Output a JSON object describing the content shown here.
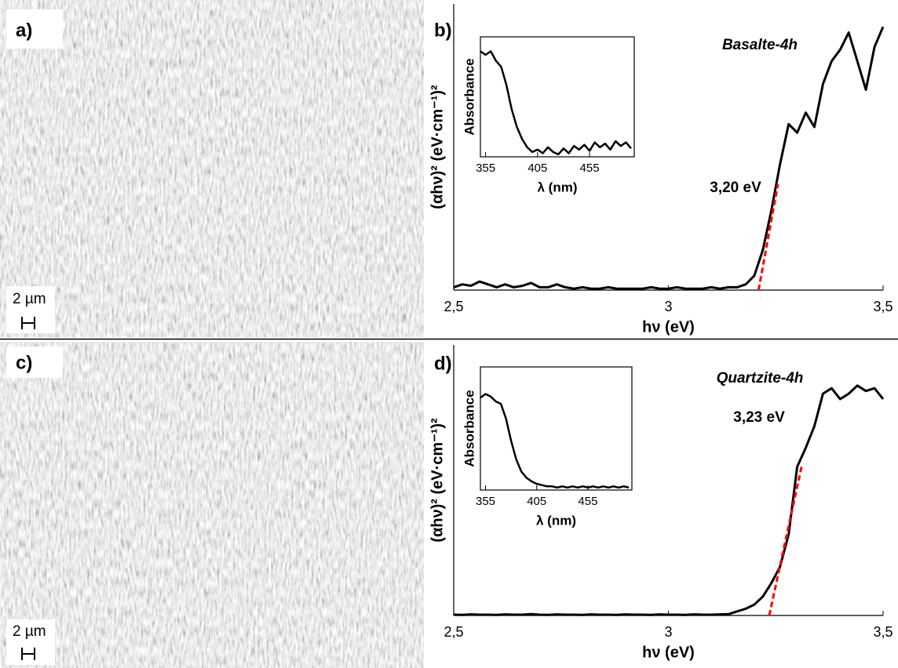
{
  "images": [
    {
      "label": "a)",
      "scale": "2 µm"
    },
    {
      "label": "c)",
      "scale": "2 µm"
    }
  ],
  "chart_data": [
    {
      "type": "line",
      "panel_label": "b)",
      "title": "Basalte-4h",
      "annotation": "3,20 eV",
      "x_label": "hν (eV)",
      "y_label": "(αhν)² (eV·cm⁻¹)²",
      "color": "#000000",
      "x": [
        2.5,
        2.52,
        2.54,
        2.56,
        2.58,
        2.6,
        2.62,
        2.64,
        2.66,
        2.68,
        2.7,
        2.72,
        2.74,
        2.76,
        2.78,
        2.8,
        2.82,
        2.84,
        2.86,
        2.88,
        2.9,
        2.92,
        2.94,
        2.96,
        2.98,
        3.0,
        3.02,
        3.04,
        3.06,
        3.08,
        3.1,
        3.12,
        3.14,
        3.16,
        3.18,
        3.2,
        3.22,
        3.24,
        3.26,
        3.28,
        3.3,
        3.32,
        3.34,
        3.36,
        3.38,
        3.4,
        3.42,
        3.44,
        3.46,
        3.48,
        3.5
      ],
      "values": [
        1,
        2,
        1.5,
        3,
        2,
        1,
        2,
        1,
        1.5,
        2.5,
        1,
        1,
        2,
        1,
        0.5,
        1,
        0.5,
        0.5,
        1,
        0.5,
        0.5,
        0.5,
        0.5,
        1,
        0.5,
        0.5,
        1,
        0.5,
        0.5,
        0.5,
        1,
        0.5,
        1,
        1,
        2,
        5,
        14,
        28,
        44,
        58,
        55,
        62,
        57,
        72,
        80,
        84,
        90,
        80,
        70,
        85,
        92
      ],
      "xlim": [
        2.5,
        3.5
      ],
      "xticks": [
        {
          "value": 2.5,
          "label": "2,5"
        },
        3,
        {
          "value": 3.5,
          "label": "3,5"
        }
      ],
      "ylim": [
        0,
        100
      ],
      "fit_line": {
        "x": [
          3.21,
          3.255
        ],
        "values": [
          0,
          37
        ],
        "color": "#ff0000"
      }
    },
    {
      "type": "line",
      "panel_label": "d)",
      "title": "Quartzite-4h",
      "annotation": "3,23 eV",
      "x_label": "hν (eV)",
      "y_label": "(αhν)² (eV·cm⁻¹)²",
      "color": "#000000",
      "x": [
        2.5,
        2.52,
        2.54,
        2.56,
        2.58,
        2.6,
        2.62,
        2.64,
        2.66,
        2.68,
        2.7,
        2.72,
        2.74,
        2.76,
        2.78,
        2.8,
        2.82,
        2.84,
        2.86,
        2.88,
        2.9,
        2.92,
        2.94,
        2.96,
        2.98,
        3.0,
        3.02,
        3.04,
        3.06,
        3.08,
        3.1,
        3.12,
        3.14,
        3.16,
        3.18,
        3.2,
        3.22,
        3.24,
        3.26,
        3.28,
        3.3,
        3.32,
        3.34,
        3.36,
        3.38,
        3.4,
        3.42,
        3.44,
        3.46,
        3.48,
        3.5
      ],
      "values": [
        0.3,
        0.2,
        0.4,
        0.3,
        0.3,
        0.2,
        0.4,
        0.3,
        0.3,
        0.5,
        0.3,
        0.2,
        0.4,
        0.3,
        0.3,
        0.2,
        0.4,
        0.3,
        0.3,
        0.2,
        0.4,
        0.3,
        0.3,
        0.2,
        0.4,
        0.3,
        0.3,
        0.2,
        0.4,
        0.3,
        0.3,
        0.4,
        0.5,
        1.5,
        2.5,
        4,
        7,
        12,
        18,
        30,
        55,
        62,
        70,
        82,
        84,
        80,
        82,
        85,
        83,
        84,
        80
      ],
      "xlim": [
        2.5,
        3.5
      ],
      "xticks": [
        {
          "value": 2.5,
          "label": "2,5"
        },
        3,
        {
          "value": 3.5,
          "label": "3,5"
        }
      ],
      "ylim": [
        0,
        100
      ],
      "fit_line": {
        "x": [
          3.235,
          3.31
        ],
        "values": [
          0,
          55
        ],
        "color": "#ff0000"
      }
    },
    {
      "type": "line",
      "x_label": "λ (nm)",
      "y_label": "Absorbance",
      "color": "#000000",
      "x": [
        350,
        355,
        360,
        365,
        370,
        375,
        380,
        385,
        390,
        395,
        400,
        405,
        410,
        415,
        420,
        425,
        430,
        435,
        440,
        445,
        450,
        455,
        460,
        465,
        470,
        475,
        480,
        485,
        490,
        495
      ],
      "values": [
        88,
        85,
        88,
        80,
        75,
        60,
        40,
        25,
        15,
        8,
        4,
        6,
        3,
        8,
        4,
        2,
        7,
        3,
        9,
        6,
        10,
        5,
        12,
        8,
        11,
        6,
        13,
        9,
        12,
        7
      ],
      "xlim": [
        350,
        498
      ],
      "xticks": [
        355,
        405,
        455
      ],
      "ylim": [
        0,
        100
      ]
    },
    {
      "type": "line",
      "x_label": "λ (nm)",
      "y_label": "Absorbance",
      "color": "#000000",
      "x": [
        350,
        355,
        360,
        365,
        370,
        375,
        380,
        385,
        390,
        395,
        400,
        405,
        410,
        415,
        420,
        425,
        430,
        435,
        440,
        445,
        450,
        455,
        460,
        465,
        470,
        475,
        480,
        485,
        490,
        495
      ],
      "values": [
        75,
        78,
        76,
        72,
        70,
        58,
        40,
        25,
        15,
        10,
        7,
        5,
        4,
        3,
        3,
        2,
        3,
        2,
        3,
        2,
        3,
        2,
        3,
        2,
        3,
        2,
        3,
        2,
        3,
        2
      ],
      "xlim": [
        350,
        498
      ],
      "xticks": [
        355,
        405,
        455
      ],
      "ylim": [
        0,
        100
      ]
    }
  ]
}
